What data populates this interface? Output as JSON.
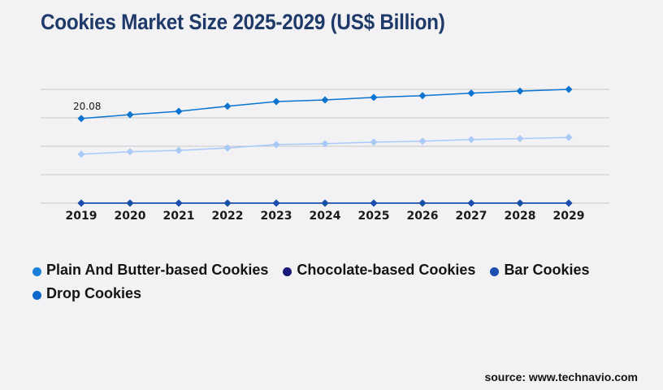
{
  "title": "Cookies Market Size 2025-2029 (US$ Billion)",
  "source": "source: www.technavio.com",
  "chart_data": {
    "type": "line",
    "title": "Cookies Market Size 2025-2029 (US$ Billion)",
    "xlabel": "",
    "ylabel": "",
    "categories": [
      "2019",
      "2020",
      "2021",
      "2022",
      "2023",
      "2024",
      "2025",
      "2026",
      "2027",
      "2028",
      "2029"
    ],
    "ylim": [
      0,
      27
    ],
    "grid": true,
    "y_ticks_labeled": false,
    "legend_position": "bottom",
    "series": [
      {
        "name": "Plain And Butter-based Cookies",
        "color": "#0a74d0",
        "legend_color": "#1a7fd8",
        "values": [
          20.08,
          21.0,
          21.8,
          23.0,
          24.1,
          24.5,
          25.1,
          25.5,
          26.1,
          26.6,
          27.0
        ],
        "first_label": "20.08"
      },
      {
        "name": "Chocolate-based Cookies",
        "color": "#a9c9f7",
        "legend_color": "#1b1a7a",
        "values": [
          11.6,
          12.2,
          12.5,
          13.1,
          13.9,
          14.1,
          14.5,
          14.7,
          15.1,
          15.3,
          15.6
        ]
      },
      {
        "name": "Bar Cookies",
        "color": "#1b4ea8",
        "legend_color": "#1a4fb0",
        "values": [
          0,
          0,
          0,
          0,
          0,
          0,
          0,
          0,
          0,
          0,
          0
        ]
      },
      {
        "name": "Drop Cookies",
        "color": "#0a66c8",
        "legend_color": "#0a66c8",
        "values": [
          0,
          0,
          0,
          0,
          0,
          0,
          0,
          0,
          0,
          0,
          0
        ]
      }
    ]
  }
}
